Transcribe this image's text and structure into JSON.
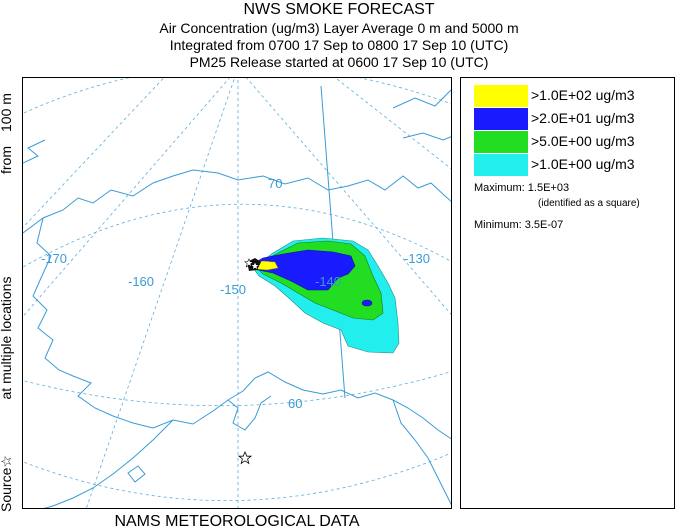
{
  "header": {
    "title": "NWS SMOKE FORECAST",
    "line2": "Air Concentration (ug/m3) Layer Average    0 m and  5000 m",
    "line3": "Integrated from 0700 17 Sep to 0800 17 Sep 10 (UTC)",
    "line4": "PM25 Release started at 0600 17 Sep 10 (UTC)"
  },
  "map": {
    "lon_labels": [
      "-170",
      "-160",
      "-150",
      "-140",
      "-130"
    ],
    "lat_labels": [
      "70",
      "60"
    ],
    "coast_color": "#3a9bd6",
    "grid_color": "#5aaee0"
  },
  "legend": {
    "items": [
      {
        "label": ">1.0E+02 ug/m3",
        "color": "#ffff00"
      },
      {
        "label": ">2.0E+01 ug/m3",
        "color": "#1a1aff"
      },
      {
        "label": ">5.0E+00 ug/m3",
        "color": "#22dd22"
      },
      {
        "label": ">1.0E+00 ug/m3",
        "color": "#22eeee"
      }
    ],
    "maximum": "Maximum: 1.5E+03",
    "maximum_note": "(identified as a square)",
    "minimum": "Minimum: 3.5E-07"
  },
  "side_label": {
    "part1": "Source☆",
    "part2": "at multiple locations",
    "part3": "from",
    "part4": "100 m"
  },
  "footer": {
    "label": "NAMS METEOROLOGICAL DATA"
  }
}
